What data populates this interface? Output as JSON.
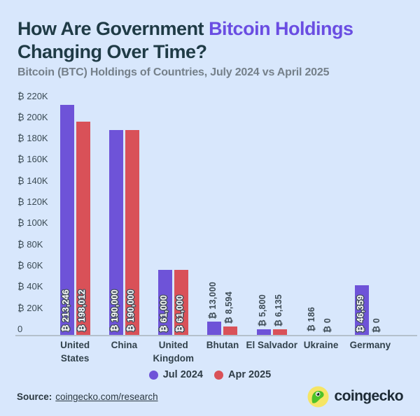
{
  "header": {
    "title_pre": "How Are Government ",
    "title_accent": "Bitcoin Holdings",
    "title_post": " Changing Over Time?",
    "subtitle": "Bitcoin (BTC) Holdings of Countries, July 2024 vs April 2025"
  },
  "chart_data": {
    "type": "bar",
    "title": "How Are Government Bitcoin Holdings Changing Over Time?",
    "subtitle": "Bitcoin (BTC) Holdings of Countries, July 2024 vs April 2025",
    "categories": [
      "United States",
      "China",
      "United Kingdom",
      "Bhutan",
      "El Salvador",
      "Ukraine",
      "Germany"
    ],
    "category_labels": [
      "United\nStates",
      "China",
      "United\nKingdom",
      "Bhutan",
      "El Salvador",
      "Ukraine",
      "Germany"
    ],
    "series": [
      {
        "name": "Jul 2024",
        "color": "#6e53d8",
        "values": [
          213246,
          190000,
          61000,
          13000,
          5800,
          186,
          46359
        ],
        "labels": [
          "₿ 213,246",
          "₿ 190,000",
          "₿ 61,000",
          "₿ 13,000",
          "₿ 5,800",
          "₿ 186",
          "₿ 46,359"
        ]
      },
      {
        "name": "Apr 2025",
        "color": "#d95158",
        "values": [
          198012,
          190000,
          61000,
          8594,
          6135,
          0,
          0
        ],
        "labels": [
          "₿ 198,012",
          "₿ 190,000",
          "₿ 61,000",
          "₿ 8,594",
          "₿ 6,135",
          "₿ 0",
          "₿ 0"
        ]
      }
    ],
    "y_ticks": [
      "₿ 220K",
      "₿ 200K",
      "₿ 180K",
      "₿ 160K",
      "₿ 140K",
      "₿ 120K",
      "₿ 100K",
      "₿ 80K",
      "₿ 60K",
      "₿ 40K",
      "₿ 20K",
      "0"
    ],
    "ylim": [
      0,
      220000
    ],
    "grid": false,
    "legend_position": "bottom",
    "inside_label_threshold": 40000
  },
  "legend": {
    "items": [
      {
        "label": "Jul 2024",
        "color": "#6e53d8"
      },
      {
        "label": "Apr 2025",
        "color": "#d95158"
      }
    ]
  },
  "footer": {
    "source_label": "Source:",
    "source_link": "coingecko.com/research",
    "brand": "coingecko"
  },
  "colors": {
    "background": "#d8e7fc",
    "title": "#1f3b46",
    "title_accent": "#6a4de2",
    "subtitle": "#75808a",
    "bar_jul2024": "#6e53d8",
    "bar_apr2025": "#d95158",
    "axis_text": "#3b4b55",
    "axis_line": "#b4c0cc"
  },
  "icons": {
    "brand_logo": "coingecko-gecko-icon"
  }
}
